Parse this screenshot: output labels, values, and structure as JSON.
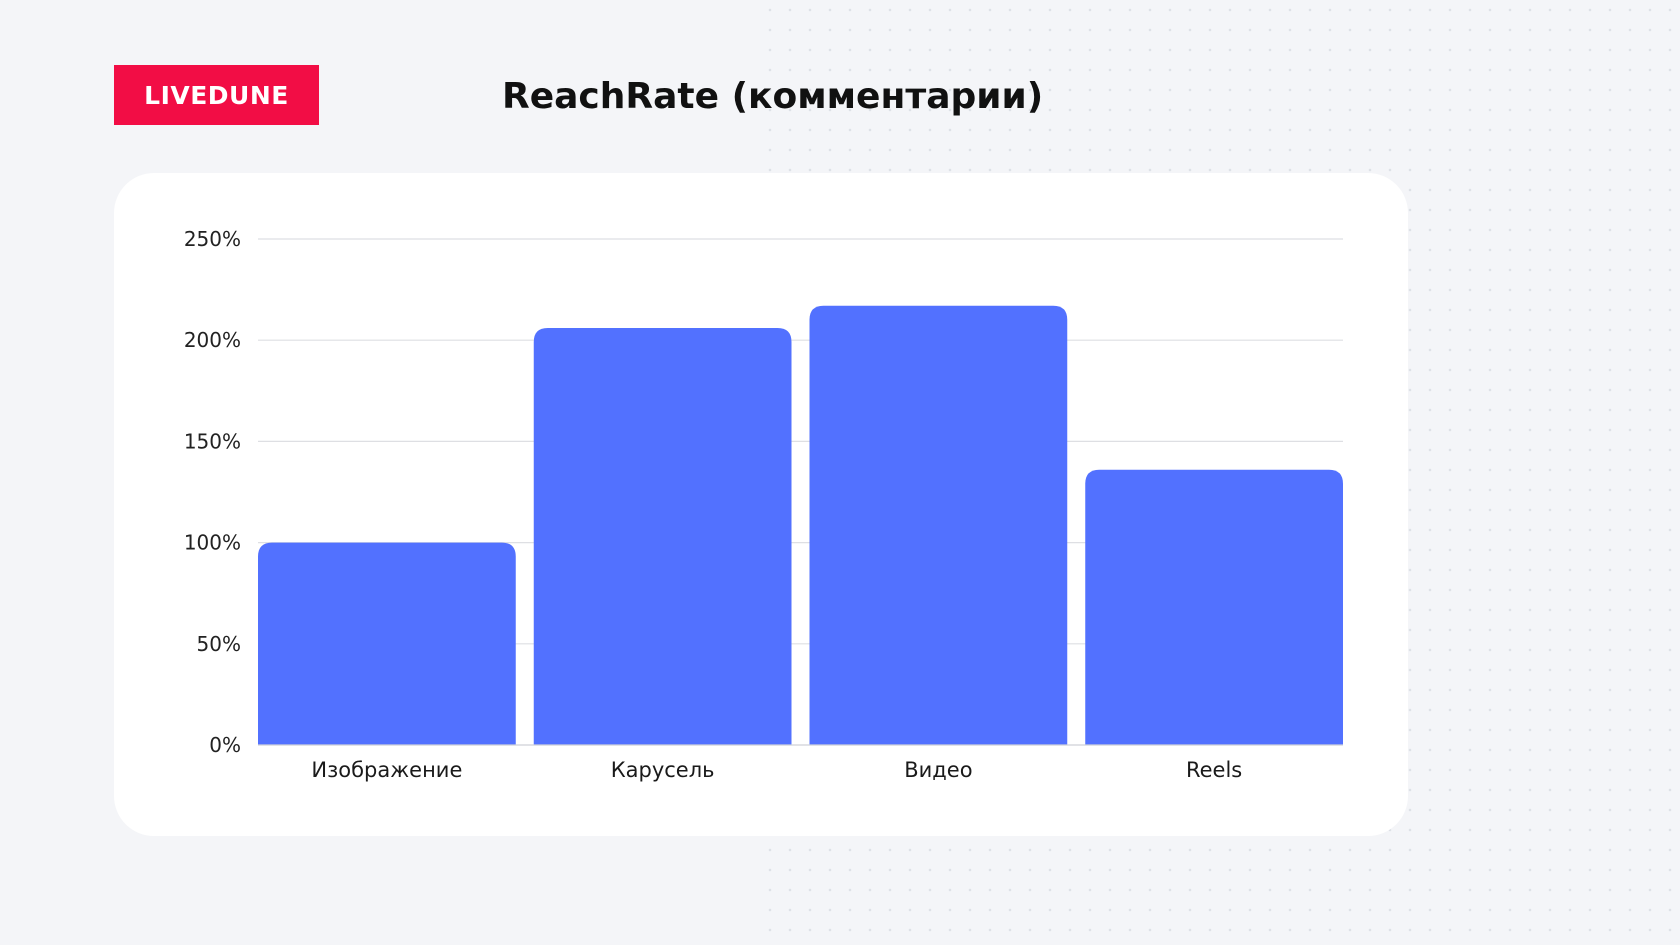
{
  "brand": {
    "logo_text": "LIVEDUNE",
    "logo_color": "#f20d45"
  },
  "chart_data": {
    "type": "bar",
    "title": "ReachRate (комментарии)",
    "categories": [
      "Изображение",
      "Карусель",
      "Видео",
      "Reels"
    ],
    "values": [
      100,
      206,
      217,
      136
    ],
    "y_unit": "%",
    "ylim": [
      0,
      250
    ],
    "y_ticks": [
      0,
      50,
      100,
      150,
      200,
      250
    ],
    "y_tick_labels": [
      "0%",
      "50%",
      "100%",
      "150%",
      "200%",
      "250%"
    ],
    "grid": true,
    "bar_color": "#5271ff",
    "grid_color": "#dedfe3"
  }
}
